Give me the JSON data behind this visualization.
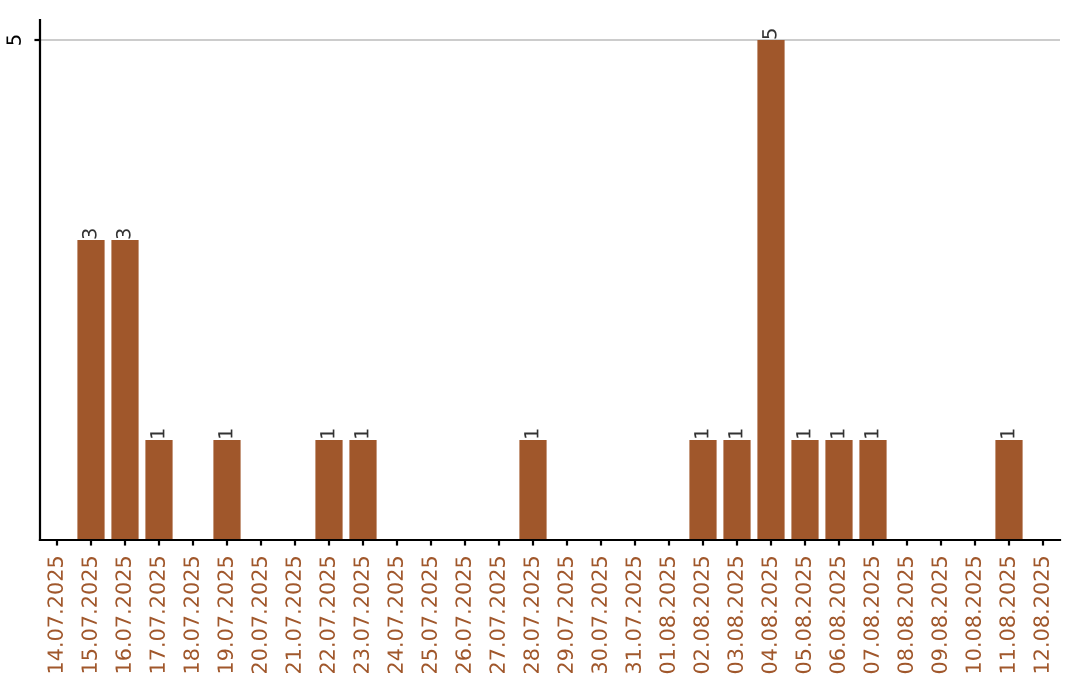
{
  "chart_data": {
    "type": "bar",
    "categories": [
      "14.07.2025",
      "15.07.2025",
      "16.07.2025",
      "17.07.2025",
      "18.07.2025",
      "19.07.2025",
      "20.07.2025",
      "21.07.2025",
      "22.07.2025",
      "23.07.2025",
      "24.07.2025",
      "25.07.2025",
      "26.07.2025",
      "27.07.2025",
      "28.07.2025",
      "29.07.2025",
      "30.07.2025",
      "31.07.2025",
      "01.08.2025",
      "02.08.2025",
      "03.08.2025",
      "04.08.2025",
      "05.08.2025",
      "06.08.2025",
      "07.08.2025",
      "08.08.2025",
      "09.08.2025",
      "10.08.2025",
      "11.08.2025",
      "12.08.2025"
    ],
    "values": [
      0,
      3,
      3,
      1,
      0,
      1,
      0,
      0,
      1,
      1,
      0,
      0,
      0,
      0,
      1,
      0,
      0,
      0,
      0,
      1,
      1,
      5,
      1,
      1,
      1,
      0,
      0,
      0,
      1,
      0
    ],
    "value_labels": [
      null,
      "3",
      "3",
      "1",
      null,
      "1",
      null,
      null,
      "1",
      "1",
      null,
      null,
      null,
      null,
      "1",
      null,
      null,
      null,
      null,
      "1",
      "1",
      "5",
      "1",
      "1",
      "1",
      null,
      null,
      null,
      "1",
      null
    ],
    "color": "#a0572b",
    "ylim": [
      0,
      5.2
    ],
    "yticks": [
      5
    ],
    "grid": "y"
  }
}
